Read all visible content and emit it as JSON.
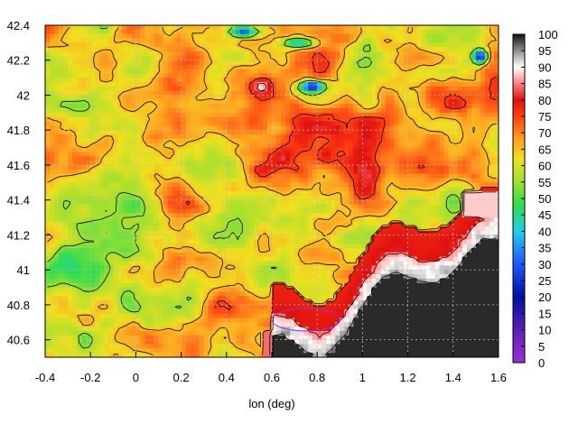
{
  "chart_data": {
    "type": "heatmap",
    "title": "",
    "xlabel": "lon (deg)",
    "ylabel": "",
    "xlim": [
      -0.4,
      1.6
    ],
    "ylim": [
      40.5,
      42.4
    ],
    "grid": true,
    "colorbar": {
      "range": [
        0,
        100
      ],
      "ticks": [
        "0",
        "5",
        "10",
        "15",
        "20",
        "25",
        "30",
        "35",
        "40",
        "45",
        "50",
        "55",
        "60",
        "65",
        "70",
        "75",
        "80",
        "85",
        "90",
        "95",
        "100"
      ],
      "stops": [
        {
          "v": 0,
          "color": "#9d2fd8"
        },
        {
          "v": 10,
          "color": "#5a20b8"
        },
        {
          "v": 20,
          "color": "#0010a0"
        },
        {
          "v": 30,
          "color": "#1e58ff"
        },
        {
          "v": 40,
          "color": "#20d0e8"
        },
        {
          "v": 48,
          "color": "#30dc50"
        },
        {
          "v": 55,
          "color": "#9ee030"
        },
        {
          "v": 62,
          "color": "#f0e020"
        },
        {
          "v": 68,
          "color": "#ffa020"
        },
        {
          "v": 75,
          "color": "#ff4010"
        },
        {
          "v": 80,
          "color": "#e01010"
        },
        {
          "v": 85,
          "color": "#ff8080"
        },
        {
          "v": 90,
          "color": "#ffffff"
        },
        {
          "v": 95,
          "color": "#909090"
        },
        {
          "v": 100,
          "color": "#101010"
        }
      ]
    },
    "x_ticks": [
      "-0.4",
      "-0.2",
      "0",
      "0.2",
      "0.4",
      "0.6",
      "0.8",
      "1",
      "1.2",
      "1.4",
      "1.6"
    ],
    "y_ticks": [
      "40.6",
      "40.8",
      "41",
      "41.2",
      "41.4",
      "41.6",
      "41.8",
      "42",
      "42.2",
      "42.4"
    ],
    "features": [
      {
        "kind": "saturated-region",
        "value": 100,
        "lon": [
          0.85,
          1.6
        ],
        "lat": [
          40.52,
          41.2
        ]
      },
      {
        "kind": "high-band",
        "value": 88,
        "lon": [
          0.35,
          1.6
        ],
        "lat": [
          40.5,
          41.45
        ]
      },
      {
        "kind": "green-patch",
        "value": 50,
        "lon": [
          -0.4,
          0.2
        ],
        "lat": [
          40.8,
          41.3
        ]
      },
      {
        "kind": "green-patch",
        "value": 52,
        "lon": [
          0.2,
          0.45
        ],
        "lat": [
          41.55,
          41.9
        ]
      },
      {
        "kind": "blue-spot",
        "value": 25,
        "lon": 0.78,
        "lat": 42.05
      },
      {
        "kind": "blue-spot",
        "value": 22,
        "lon": 1.52,
        "lat": 42.22
      },
      {
        "kind": "blue-spot",
        "value": 30,
        "lon": 0.48,
        "lat": 42.36
      },
      {
        "kind": "purple-contour",
        "value": 10,
        "lon": [
          0.6,
          0.9
        ],
        "lat": [
          40.65,
          40.78
        ]
      }
    ]
  }
}
